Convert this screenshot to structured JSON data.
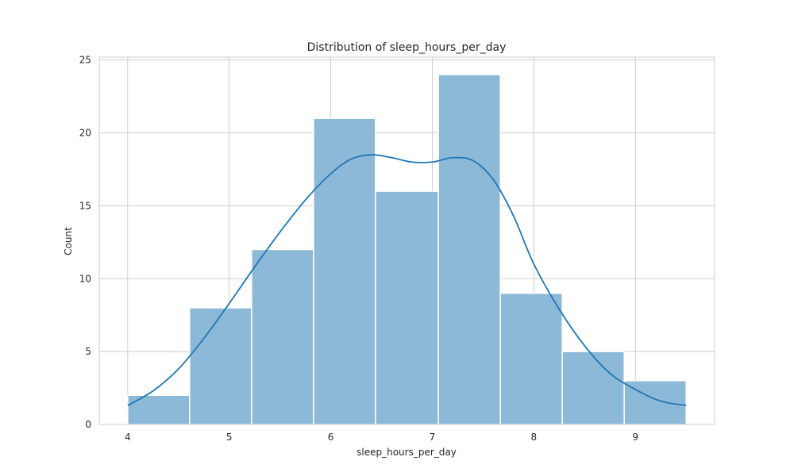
{
  "chart_data": {
    "type": "bar",
    "subtype": "histogram_with_kde",
    "title": "Distribution of sleep_hours_per_day",
    "xlabel": "sleep_hours_per_day",
    "ylabel": "Count",
    "xlim": [
      3.72,
      9.78
    ],
    "ylim": [
      0,
      25.2
    ],
    "xticks": [
      4,
      5,
      6,
      7,
      8,
      9
    ],
    "yticks": [
      0,
      5,
      10,
      15,
      20,
      25
    ],
    "grid": true,
    "bins": [
      {
        "start": 4.0,
        "end": 4.61,
        "count": 2
      },
      {
        "start": 4.61,
        "end": 5.22,
        "count": 8
      },
      {
        "start": 5.22,
        "end": 5.83,
        "count": 12
      },
      {
        "start": 5.83,
        "end": 6.44,
        "count": 21
      },
      {
        "start": 6.44,
        "end": 7.06,
        "count": 16
      },
      {
        "start": 7.06,
        "end": 7.67,
        "count": 24
      },
      {
        "start": 7.67,
        "end": 8.28,
        "count": 9
      },
      {
        "start": 8.28,
        "end": 8.89,
        "count": 5
      },
      {
        "start": 8.89,
        "end": 9.5,
        "count": 3
      }
    ],
    "kde": {
      "x": [
        4.0,
        4.25,
        4.5,
        4.75,
        5.0,
        5.25,
        5.5,
        5.75,
        6.0,
        6.2,
        6.4,
        6.6,
        6.8,
        7.0,
        7.2,
        7.4,
        7.6,
        7.8,
        8.0,
        8.25,
        8.5,
        8.75,
        9.0,
        9.25,
        9.5
      ],
      "y": [
        1.3,
        2.3,
        3.8,
        5.9,
        8.3,
        10.8,
        13.2,
        15.4,
        17.2,
        18.2,
        18.5,
        18.3,
        18.0,
        18.0,
        18.3,
        18.1,
        16.8,
        14.3,
        11.0,
        7.9,
        5.4,
        3.5,
        2.4,
        1.6,
        1.3
      ]
    },
    "colors": {
      "bar_fill": "#8db9d8",
      "line": "#1f77b4",
      "grid": "#cccccc",
      "background": "#ffffff"
    }
  }
}
